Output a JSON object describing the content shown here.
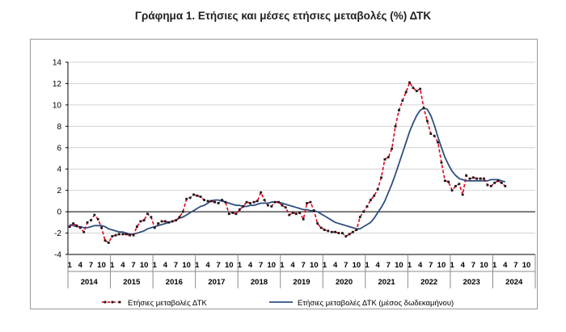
{
  "title": "Γράφημα 1. Ετήσιες και μέσες ετήσιες μεταβολές (%) ΔΤΚ",
  "chart_data": {
    "type": "line",
    "ylim": [
      -4,
      14
    ],
    "yticks": [
      -4,
      -2,
      0,
      2,
      4,
      6,
      8,
      10,
      12,
      14
    ],
    "grid": "horizontal",
    "legend_position": "bottom",
    "month_tick_labels": [
      "1",
      "4",
      "7",
      "10"
    ],
    "years": [
      "2014",
      "2015",
      "2016",
      "2017",
      "2018",
      "2019",
      "2020",
      "2021",
      "2022",
      "2023",
      "2024"
    ],
    "x_start": "2014-01",
    "x_end": "2024-10",
    "series": [
      {
        "name": "Ετήσιες μεταβολές ΔΤΚ",
        "color": "#e0001b",
        "style": "dashed-with-markers",
        "values": [
          -1.4,
          -1.1,
          -1.3,
          -1.5,
          -1.9,
          -1.0,
          -0.8,
          -0.3,
          -0.7,
          -1.5,
          -2.7,
          -2.9,
          -2.3,
          -2.2,
          -2.1,
          -2.1,
          -2.1,
          -2.2,
          -2.2,
          -1.4,
          -0.9,
          -0.8,
          -0.2,
          -0.5,
          -1.5,
          -1.1,
          -0.9,
          -0.9,
          -1.0,
          -0.9,
          -0.8,
          -0.5,
          0.0,
          1.2,
          1.3,
          1.6,
          1.5,
          1.4,
          1.1,
          1.0,
          1.0,
          0.9,
          0.8,
          1.1,
          0.9,
          -0.2,
          -0.1,
          -0.2,
          0.2,
          0.5,
          0.9,
          0.8,
          0.9,
          1.0,
          1.8,
          1.1,
          0.6,
          0.5,
          0.9,
          0.9,
          0.6,
          0.4,
          -0.3,
          -0.1,
          -0.2,
          -0.1,
          -0.7,
          0.8,
          0.9,
          0.1,
          -1.1,
          -1.5,
          -1.7,
          -1.8,
          -1.9,
          -1.9,
          -2.0,
          -2.0,
          -2.3,
          -2.1,
          -1.9,
          -1.7,
          -0.5,
          0.0,
          0.5,
          1.1,
          1.5,
          2.1,
          3.2,
          4.9,
          5.1,
          5.9,
          8.0,
          9.5,
          10.4,
          11.2,
          12.1,
          11.6,
          11.3,
          11.5,
          9.7,
          8.5,
          7.3,
          7.1,
          6.5,
          4.6,
          2.9,
          2.8,
          2.0,
          2.4,
          2.6,
          1.6,
          3.4,
          3.1,
          3.2,
          3.1,
          3.1,
          3.1,
          2.5,
          2.4,
          2.7,
          2.9,
          2.7,
          2.4
        ]
      },
      {
        "name": "Ετήσιες μεταβολές ΔΤΚ (μέσος δωδεκαμήνου)",
        "color": "#2e4f7f",
        "style": "solid",
        "values": [
          -1.2,
          -1.3,
          -1.4,
          -1.4,
          -1.5,
          -1.5,
          -1.4,
          -1.3,
          -1.3,
          -1.3,
          -1.4,
          -1.6,
          -1.7,
          -1.8,
          -1.9,
          -1.9,
          -2.0,
          -2.1,
          -2.1,
          -2.0,
          -1.9,
          -1.8,
          -1.6,
          -1.5,
          -1.4,
          -1.3,
          -1.2,
          -1.1,
          -1.0,
          -0.9,
          -0.8,
          -0.6,
          -0.5,
          -0.3,
          -0.1,
          0.1,
          0.3,
          0.5,
          0.6,
          0.8,
          1.0,
          1.1,
          1.1,
          1.0,
          0.9,
          0.8,
          0.7,
          0.6,
          0.6,
          0.5,
          0.5,
          0.6,
          0.6,
          0.7,
          0.8,
          0.8,
          0.8,
          0.9,
          0.9,
          0.9,
          0.8,
          0.7,
          0.6,
          0.5,
          0.4,
          0.3,
          0.2,
          0.2,
          0.1,
          0.1,
          0.0,
          -0.2,
          -0.4,
          -0.6,
          -0.8,
          -1.0,
          -1.1,
          -1.2,
          -1.3,
          -1.4,
          -1.5,
          -1.6,
          -1.6,
          -1.4,
          -1.2,
          -1.0,
          -0.6,
          -0.1,
          0.4,
          1.0,
          1.8,
          2.6,
          3.5,
          4.5,
          5.5,
          6.5,
          7.5,
          8.3,
          9.0,
          9.5,
          9.7,
          9.6,
          9.0,
          8.1,
          7.0,
          6.0,
          5.1,
          4.4,
          3.8,
          3.4,
          3.1,
          3.0,
          2.9,
          2.9,
          2.9,
          2.9,
          2.9,
          2.9,
          2.9,
          3.0,
          3.0,
          3.0,
          2.9,
          2.8
        ]
      }
    ]
  }
}
